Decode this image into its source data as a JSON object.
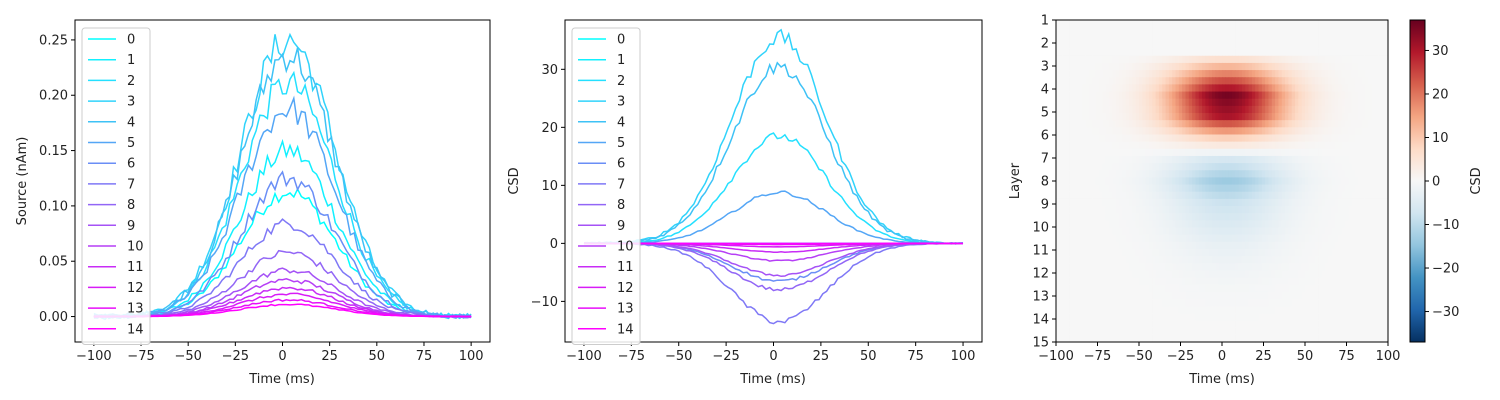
{
  "chart_data": [
    {
      "type": "line",
      "xlabel": "Time (ms)",
      "ylabel": "Source (nAm)",
      "xlim": [
        -110,
        110
      ],
      "ylim": [
        -0.023,
        0.268
      ],
      "xticks": [
        -100,
        -75,
        -50,
        -25,
        0,
        25,
        50,
        75,
        100
      ],
      "xtick_labels": [
        "−100",
        "−75",
        "−50",
        "−25",
        "0",
        "25",
        "50",
        "75",
        "100"
      ],
      "yticks": [
        0.0,
        0.05,
        0.1,
        0.15,
        0.2,
        0.25
      ],
      "ytick_labels": [
        "0.00",
        "0.05",
        "0.10",
        "0.15",
        "0.20",
        "0.25"
      ],
      "x_range": [
        -100,
        100
      ],
      "shape": "gaussian",
      "center": 3,
      "sigma": 25,
      "legend": "upper-left",
      "series": [
        {
          "name": "0",
          "peak": 0.113,
          "color": "#00ffff"
        },
        {
          "name": "1",
          "peak": 0.15,
          "color": "#12f0ff"
        },
        {
          "name": "2",
          "peak": 0.21,
          "color": "#24e0ff"
        },
        {
          "name": "3",
          "peak": 0.25,
          "color": "#30d3fb"
        },
        {
          "name": "4",
          "peak": 0.237,
          "color": "#3ec2f6"
        },
        {
          "name": "5",
          "peak": 0.188,
          "color": "#54a6f6"
        },
        {
          "name": "6",
          "peak": 0.125,
          "color": "#6a8ef6"
        },
        {
          "name": "7",
          "peak": 0.084,
          "color": "#7f78f6"
        },
        {
          "name": "8",
          "peak": 0.058,
          "color": "#9266f6"
        },
        {
          "name": "9",
          "peak": 0.042,
          "color": "#a552f6"
        },
        {
          "name": "10",
          "peak": 0.033,
          "color": "#b63ff6"
        },
        {
          "name": "11",
          "peak": 0.026,
          "color": "#c82cf6"
        },
        {
          "name": "12",
          "peak": 0.02,
          "color": "#d81cf7"
        },
        {
          "name": "13",
          "peak": 0.015,
          "color": "#e80ef9"
        },
        {
          "name": "14",
          "peak": 0.011,
          "color": "#ff00ff"
        }
      ]
    },
    {
      "type": "line",
      "xlabel": "Time (ms)",
      "ylabel": "CSD",
      "xlim": [
        -110,
        110
      ],
      "ylim": [
        -17,
        38.5
      ],
      "xticks": [
        -100,
        -75,
        -50,
        -25,
        0,
        25,
        50,
        75,
        100
      ],
      "xtick_labels": [
        "−100",
        "−75",
        "−50",
        "−25",
        "0",
        "25",
        "50",
        "75",
        "100"
      ],
      "yticks": [
        -10,
        0,
        10,
        20,
        30
      ],
      "ytick_labels": [
        "−10",
        "0",
        "10",
        "20",
        "30"
      ],
      "x_range": [
        -100,
        100
      ],
      "shape": "gaussian",
      "center": 3,
      "sigma": 25,
      "legend": "upper-left",
      "series": [
        {
          "name": "0",
          "peak": 0.0,
          "color": "#00ffff"
        },
        {
          "name": "1",
          "peak": 0.0,
          "color": "#12f0ff"
        },
        {
          "name": "2",
          "peak": 18.5,
          "color": "#24e0ff"
        },
        {
          "name": "3",
          "peak": 35.5,
          "color": "#30d3fb"
        },
        {
          "name": "4",
          "peak": 30.5,
          "color": "#3ec2f6"
        },
        {
          "name": "5",
          "peak": 8.8,
          "color": "#54a6f6"
        },
        {
          "name": "6",
          "peak": -6.5,
          "color": "#6a8ef6"
        },
        {
          "name": "7",
          "peak": -13.5,
          "color": "#7f78f6"
        },
        {
          "name": "8",
          "peak": -8.0,
          "color": "#9266f6"
        },
        {
          "name": "9",
          "peak": -5.5,
          "color": "#a552f6"
        },
        {
          "name": "10",
          "peak": -3.0,
          "color": "#b63ff6"
        },
        {
          "name": "11",
          "peak": -1.5,
          "color": "#c82cf6"
        },
        {
          "name": "12",
          "peak": -0.6,
          "color": "#d81cf7"
        },
        {
          "name": "13",
          "peak": -0.2,
          "color": "#e80ef9"
        },
        {
          "name": "14",
          "peak": 0.0,
          "color": "#ff00ff"
        }
      ]
    },
    {
      "type": "heatmap",
      "xlabel": "Time (ms)",
      "ylabel": "Layer",
      "xlim": [
        -100,
        100
      ],
      "xticks": [
        -100,
        -75,
        -50,
        -25,
        0,
        25,
        50,
        75,
        100
      ],
      "xtick_labels": [
        "−100",
        "−75",
        "−50",
        "−25",
        "0",
        "25",
        "50",
        "75",
        "100"
      ],
      "rows": [
        "1",
        "2",
        "3",
        "4",
        "5",
        "6",
        "7",
        "8",
        "9",
        "10",
        "11",
        "12",
        "13",
        "14",
        "15"
      ],
      "row_values": [
        0,
        0,
        18.5,
        35.5,
        30.5,
        8.8,
        -6.5,
        -13.5,
        -8.0,
        -5.5,
        -3.0,
        -1.5,
        -0.6,
        -0.2,
        0
      ],
      "center": 3,
      "sigma": 25,
      "colormap": "RdBu_r",
      "vmin": -37,
      "vmax": 37,
      "colorbar_label": "CSD",
      "colorbar_ticks": [
        30,
        20,
        10,
        0,
        -10,
        -20,
        -30
      ],
      "colorbar_tick_labels": [
        "30",
        "20",
        "10",
        "0",
        "−10",
        "−20",
        "−30"
      ]
    }
  ]
}
